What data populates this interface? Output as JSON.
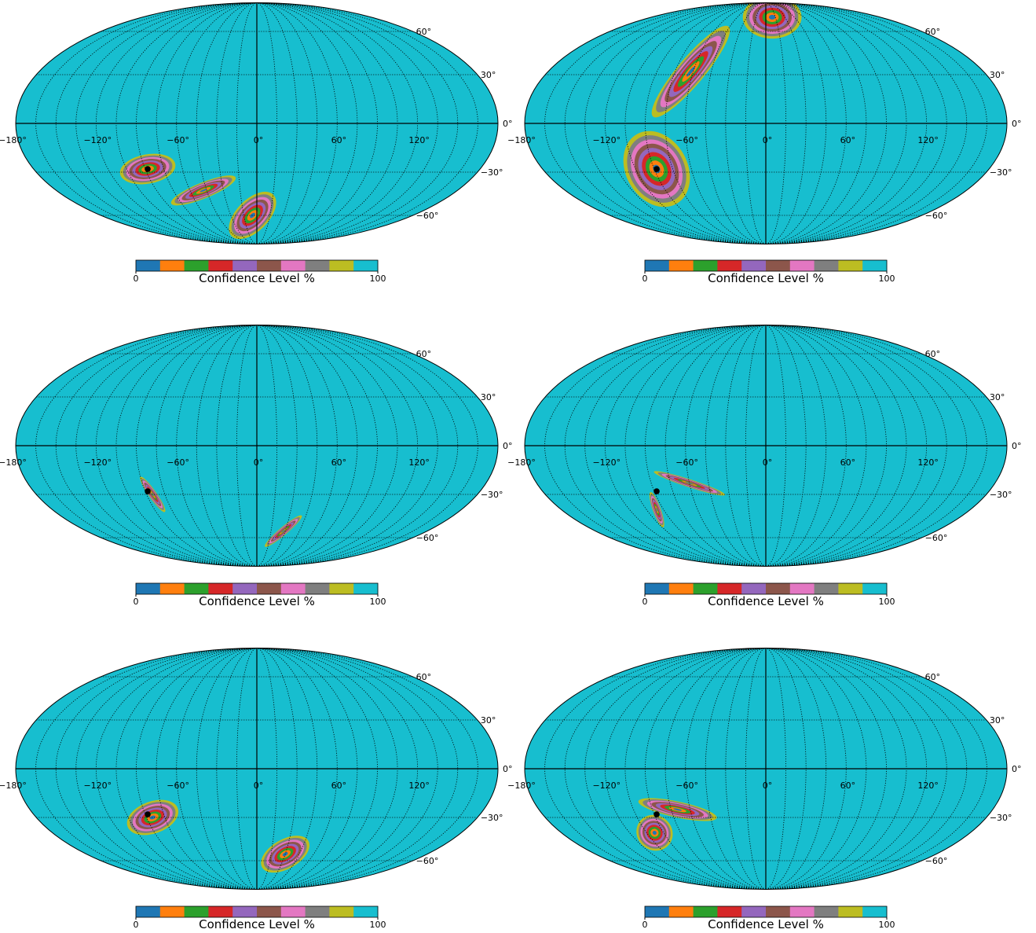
{
  "chart_data": [
    {
      "type": "heatmap",
      "projection": "mollweide",
      "grid": true,
      "xticks": [
        "−180°",
        "−120°",
        "−60°",
        "0°",
        "60°",
        "120°"
      ],
      "yticks": [
        "60°",
        "30°",
        "0°",
        "−30°",
        "−60°"
      ],
      "colorbar": {
        "label": "Confidence Level %",
        "ticks": [
          "0",
          "100"
        ],
        "levels": 10
      },
      "marker": {
        "lon": -88,
        "lat": -28
      },
      "regions": [
        {
          "lon": -88,
          "lat": -28,
          "rx": 21,
          "ry": 11,
          "rot": -10
        },
        {
          "lon": -5,
          "lat": -60,
          "rx": 22,
          "ry": 12,
          "rot": -45
        },
        {
          "lon": -48,
          "lat": -42,
          "rx": 26,
          "ry": 6,
          "rot": -22
        }
      ]
    },
    {
      "type": "heatmap",
      "projection": "mollweide",
      "grid": true,
      "xticks": [
        "−180°",
        "−120°",
        "−60°",
        "0°",
        "60°",
        "120°"
      ],
      "yticks": [
        "60°",
        "30°",
        "0°",
        "−30°",
        "−60°"
      ],
      "colorbar": {
        "label": "Confidence Level %",
        "ticks": [
          "0",
          "100"
        ],
        "levels": 10
      },
      "marker": {
        "lon": -88,
        "lat": -28
      },
      "regions": [
        {
          "lon": -88,
          "lat": -28,
          "rx": 23,
          "ry": 30,
          "rot": -30
        },
        {
          "lon": 10,
          "lat": 72,
          "rx": 22,
          "ry": 16,
          "rot": 0
        },
        {
          "lon": -62,
          "lat": 32,
          "rx": 44,
          "ry": 10,
          "rot": -50
        }
      ]
    },
    {
      "type": "heatmap",
      "projection": "mollweide",
      "grid": true,
      "xticks": [
        "−180°",
        "−120°",
        "−60°",
        "0°",
        "60°",
        "120°"
      ],
      "yticks": [
        "60°",
        "30°",
        "0°",
        "−30°",
        "−60°"
      ],
      "colorbar": {
        "label": "Confidence Level %",
        "ticks": [
          "0",
          "100"
        ],
        "levels": 10
      },
      "marker": {
        "lon": -88,
        "lat": -28
      },
      "regions": [
        {
          "lon": -85,
          "lat": -30,
          "rx": 16,
          "ry": 3,
          "rot": 55
        },
        {
          "lon": 28,
          "lat": -55,
          "rx": 18,
          "ry": 3,
          "rot": -40
        }
      ]
    },
    {
      "type": "heatmap",
      "projection": "mollweide",
      "grid": true,
      "xticks": [
        "−180°",
        "−120°",
        "−60°",
        "0°",
        "60°",
        "120°"
      ],
      "yticks": [
        "60°",
        "30°",
        "0°",
        "−30°",
        "−60°"
      ],
      "colorbar": {
        "label": "Confidence Level %",
        "ticks": [
          "0",
          "100"
        ],
        "levels": 10
      },
      "marker": {
        "lon": -88,
        "lat": -28
      },
      "regions": [
        {
          "lon": -60,
          "lat": -23,
          "rx": 28,
          "ry": 3,
          "rot": 18
        },
        {
          "lon": -96,
          "lat": -40,
          "rx": 14,
          "ry": 3,
          "rot": 70
        }
      ]
    },
    {
      "type": "heatmap",
      "projection": "mollweide",
      "grid": true,
      "xticks": [
        "−180°",
        "−120°",
        "−60°",
        "0°",
        "60°",
        "120°"
      ],
      "yticks": [
        "60°",
        "30°",
        "0°",
        "−30°",
        "−60°"
      ],
      "colorbar": {
        "label": "Confidence Level %",
        "ticks": [
          "0",
          "100"
        ],
        "levels": 10
      },
      "marker": {
        "lon": -88,
        "lat": -28
      },
      "regions": [
        {
          "lon": -85,
          "lat": -30,
          "rx": 20,
          "ry": 12,
          "rot": -20
        },
        {
          "lon": 30,
          "lat": -55,
          "rx": 20,
          "ry": 11,
          "rot": -30
        }
      ]
    },
    {
      "type": "heatmap",
      "projection": "mollweide",
      "grid": true,
      "xticks": [
        "−180°",
        "−120°",
        "−60°",
        "0°",
        "60°",
        "120°"
      ],
      "yticks": [
        "60°",
        "30°",
        "0°",
        "−30°",
        "−60°"
      ],
      "colorbar": {
        "label": "Confidence Level %",
        "ticks": [
          "0",
          "100"
        ],
        "levels": 10
      },
      "marker": {
        "lon": -88,
        "lat": -28
      },
      "regions": [
        {
          "lon": -70,
          "lat": -25,
          "rx": 30,
          "ry": 6,
          "rot": 12
        },
        {
          "lon": -98,
          "lat": -40,
          "rx": 14,
          "ry": 13,
          "rot": 40
        }
      ]
    }
  ],
  "colors": {
    "levels": [
      "#1f77b4",
      "#ff7f0e",
      "#2ca02c",
      "#d62728",
      "#9467bd",
      "#8c564b",
      "#e377c2",
      "#7f7f7f",
      "#bcbd22",
      "#17becf"
    ],
    "background": "#17becf",
    "marker": "#000000"
  }
}
